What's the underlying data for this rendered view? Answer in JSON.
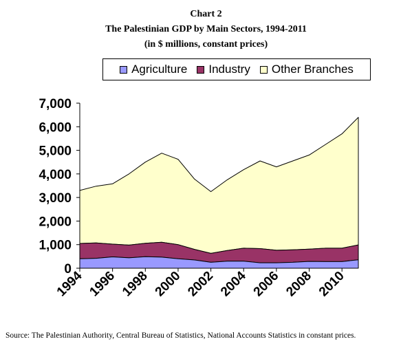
{
  "chart_data": {
    "type": "area",
    "stacked": true,
    "title_line1": "Chart 2",
    "title_line2": "The Palestinian GDP by Main Sectors, 1994-2011",
    "title_line3": "(in $ millions, constant prices)",
    "xlabel": "",
    "ylabel": "",
    "x": [
      1994,
      1995,
      1996,
      1997,
      1998,
      1999,
      2000,
      2001,
      2002,
      2003,
      2004,
      2005,
      2006,
      2007,
      2008,
      2009,
      2010,
      2011
    ],
    "x_tick_labels": [
      "1994",
      "1996",
      "1998",
      "2000",
      "2002",
      "2004",
      "2006",
      "2008",
      "2010"
    ],
    "y_tick_labels": [
      "0",
      "1,000",
      "2,000",
      "3,000",
      "4,000",
      "5,000",
      "6,000",
      "7,000"
    ],
    "ylim": [
      0,
      7000
    ],
    "grid": false,
    "legend_position": "top",
    "series": [
      {
        "name": "Agriculture",
        "color": "#9999FF",
        "values": [
          400,
          420,
          480,
          440,
          490,
          470,
          400,
          350,
          250,
          300,
          300,
          230,
          230,
          250,
          290,
          280,
          280,
          360
        ]
      },
      {
        "name": "Industry",
        "color": "#993366",
        "values": [
          650,
          650,
          540,
          540,
          570,
          630,
          600,
          450,
          380,
          450,
          550,
          600,
          530,
          530,
          520,
          570,
          570,
          630
        ]
      },
      {
        "name": "Other Branches",
        "color": "#FFFFCC",
        "values": [
          2250,
          2410,
          2560,
          3020,
          3440,
          3780,
          3620,
          2980,
          2620,
          3000,
          3330,
          3720,
          3540,
          3770,
          3990,
          4400,
          4850,
          5410
        ]
      }
    ]
  },
  "source_note": "Source: The Palestinian Authority, Central Bureau of Statistics, National Accounts Statistics in constant prices."
}
